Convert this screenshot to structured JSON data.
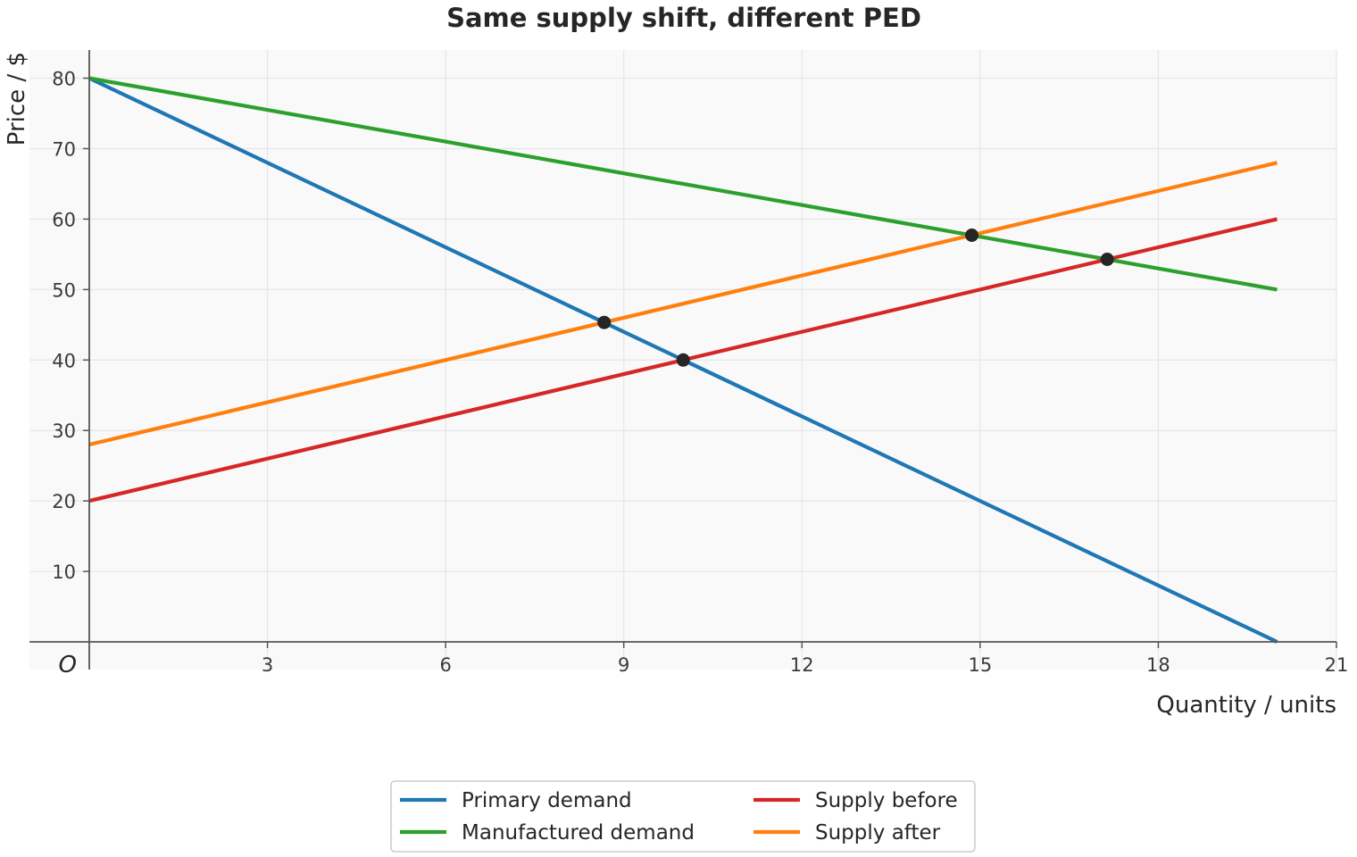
{
  "chart_data": {
    "type": "line",
    "title": "Same supply shift, different PED",
    "xlabel": "Quantity / units",
    "ylabel": "Price / $",
    "origin_label": "O",
    "xlim": [
      0,
      21
    ],
    "ylim": [
      0,
      84
    ],
    "x_ticks": [
      3,
      6,
      9,
      12,
      15,
      18,
      21
    ],
    "y_ticks": [
      10,
      20,
      30,
      40,
      50,
      60,
      70,
      80
    ],
    "grid": true,
    "legend_position": "bottom-center",
    "series": [
      {
        "name": "Primary demand",
        "color": "#1f77b4",
        "x": [
          0,
          20
        ],
        "y": [
          80,
          0
        ]
      },
      {
        "name": "Manufactured demand",
        "color": "#2ca02c",
        "x": [
          0,
          20
        ],
        "y": [
          80,
          50
        ]
      },
      {
        "name": "Supply before",
        "color": "#d62728",
        "x": [
          0,
          20
        ],
        "y": [
          20,
          60
        ]
      },
      {
        "name": "Supply after",
        "color": "#ff7f0e",
        "x": [
          0,
          20
        ],
        "y": [
          28,
          68
        ]
      }
    ],
    "equilibrium_points": [
      {
        "x": 10,
        "y": 40
      },
      {
        "x": 8.67,
        "y": 45.33
      },
      {
        "x": 17.14,
        "y": 54.29
      },
      {
        "x": 14.86,
        "y": 57.71
      }
    ],
    "point_color": "#262626"
  }
}
